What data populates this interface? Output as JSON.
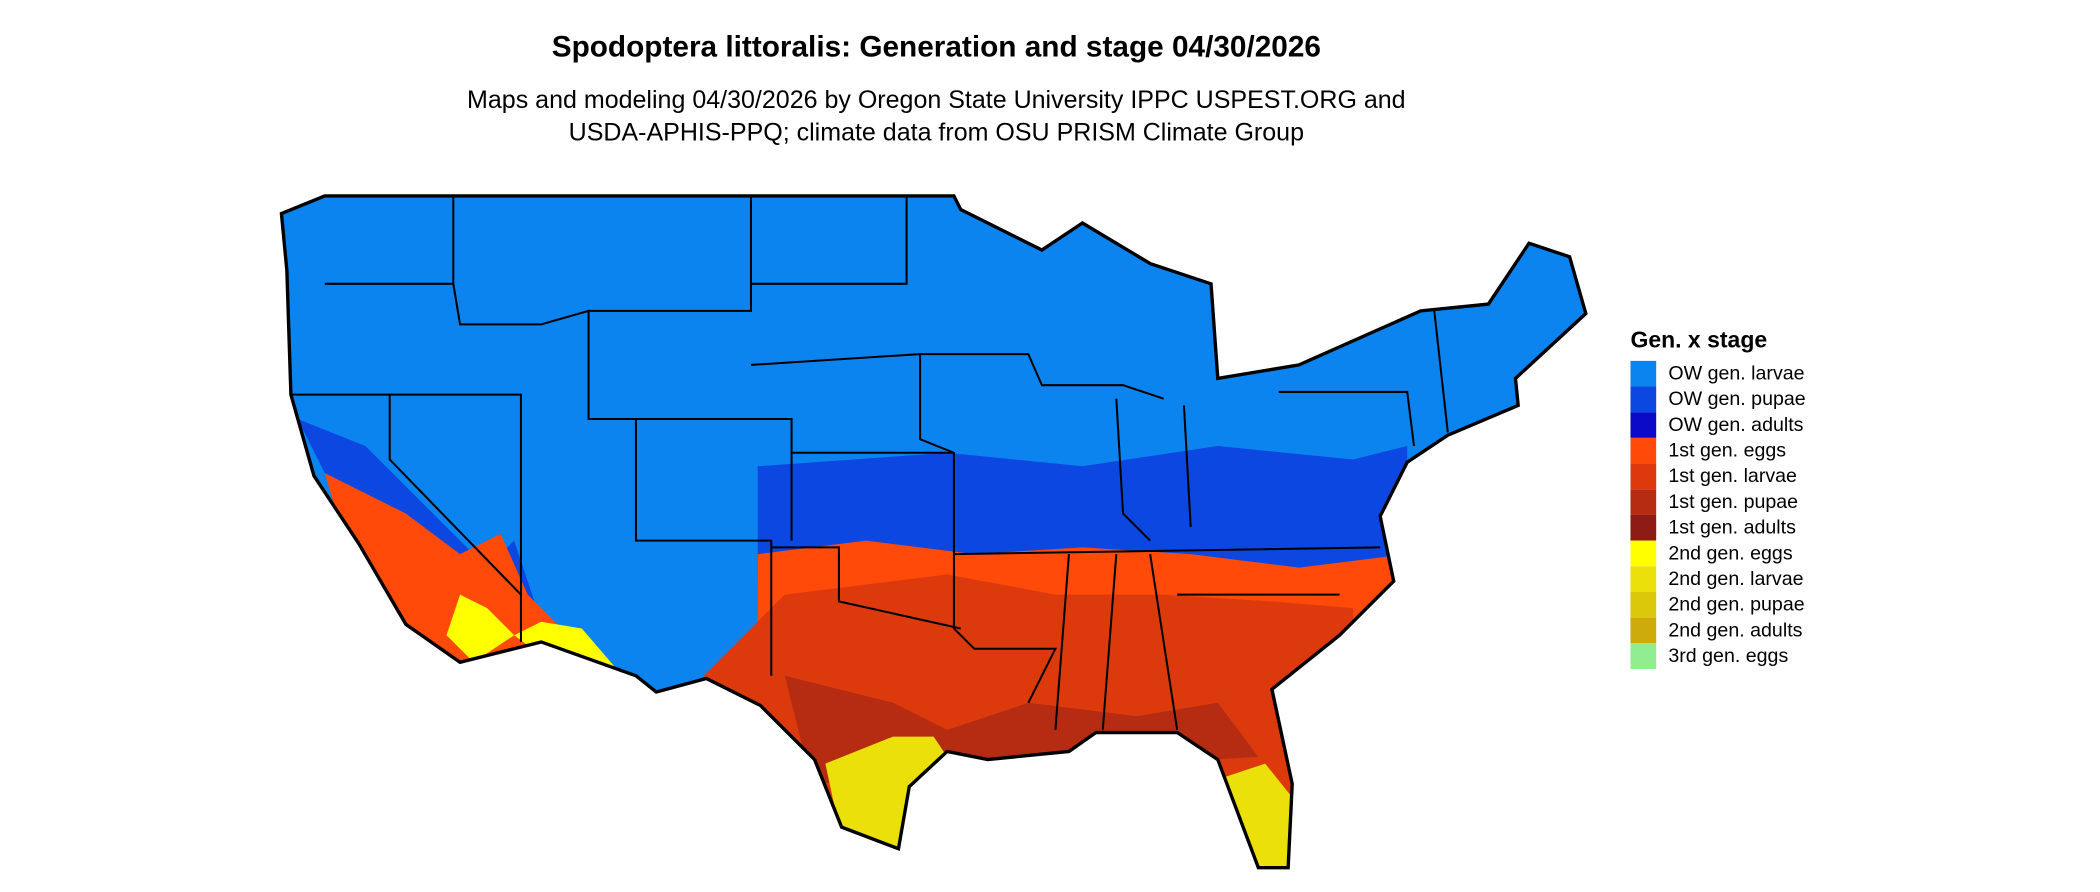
{
  "title": "Spodoptera littoralis: Generation and stage 04/30/2026",
  "subtitle": [
    "Maps and modeling 04/30/2026 by Oregon State University IPPC USPEST.ORG and",
    "USDA-APHIS-PPQ; climate data from OSU PRISM Climate Group"
  ],
  "legend": {
    "title": "Gen. x stage",
    "items": [
      {
        "label": "OW gen. larvae",
        "color": "#0b84f0"
      },
      {
        "label": "OW gen. pupae",
        "color": "#0b47e0"
      },
      {
        "label": "OW gen. adults",
        "color": "#0a0ac8"
      },
      {
        "label": "1st gen. eggs",
        "color": "#ff4a0a"
      },
      {
        "label": "1st gen. larvae",
        "color": "#dc3a0c"
      },
      {
        "label": "1st gen. pupae",
        "color": "#b52c12"
      },
      {
        "label": "1st gen. adults",
        "color": "#8e1a16"
      },
      {
        "label": "2nd gen. eggs",
        "color": "#ffff00"
      },
      {
        "label": "2nd gen. larvae",
        "color": "#ece00a"
      },
      {
        "label": "2nd gen. pupae",
        "color": "#dcc80a"
      },
      {
        "label": "2nd gen. adults",
        "color": "#ccab0a"
      },
      {
        "label": "3rd gen. eggs",
        "color": "#90ee90"
      }
    ]
  }
}
